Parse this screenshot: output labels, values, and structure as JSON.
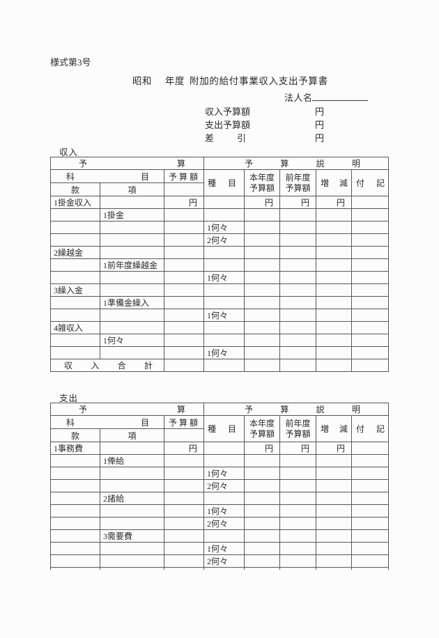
{
  "document": {
    "form_number": "様式第3号",
    "title": {
      "era": "昭和",
      "year_suffix": "年度",
      "main": "附加的給付事業収入支出予算書"
    },
    "corporate_name_label": "法人名",
    "summary_rows": [
      {
        "label": "収入予算額",
        "unit": "円"
      },
      {
        "label": "支出予算額",
        "unit": "円"
      },
      {
        "label": "差 引",
        "unit": "円"
      }
    ]
  },
  "table_header": {
    "budget_group": "予 算",
    "explanation_group": "予 算 説 明",
    "subject": "科 目",
    "budget_amount": "予 算 額",
    "division": "款",
    "item": "項",
    "category": "種 目",
    "current_year_lines": [
      "本年度",
      "予算額"
    ],
    "previous_year_lines": [
      "前年度",
      "予算額"
    ],
    "change": "増 減",
    "note": "付 記"
  },
  "income": {
    "section_label": "収入",
    "rows": [
      [
        "1掛金収入",
        "",
        "円",
        "",
        "円",
        "円",
        "円",
        ""
      ],
      [
        "",
        "1掛金",
        "",
        "",
        "",
        "",
        "",
        ""
      ],
      [
        "",
        "",
        "",
        "1何々",
        "",
        "",
        "",
        ""
      ],
      [
        "",
        "",
        "",
        "2何々",
        "",
        "",
        "",
        ""
      ],
      [
        "2繰越金",
        "",
        "",
        "",
        "",
        "",
        "",
        ""
      ],
      [
        "",
        "1前年度繰越金",
        "",
        "",
        "",
        "",
        "",
        ""
      ],
      [
        "",
        "",
        "",
        "1何々",
        "",
        "",
        "",
        ""
      ],
      [
        "3繰入金",
        "",
        "",
        "",
        "",
        "",
        "",
        ""
      ],
      [
        "",
        "1準備金繰入",
        "",
        "",
        "",
        "",
        "",
        ""
      ],
      [
        "",
        "",
        "",
        "1何々",
        "",
        "",
        "",
        ""
      ],
      [
        "4雑収入",
        "",
        "",
        "",
        "",
        "",
        "",
        ""
      ],
      [
        "",
        "1何々",
        "",
        "",
        "",
        "",
        "",
        ""
      ],
      [
        "",
        "",
        "",
        "1何々",
        "",
        "",
        "",
        ""
      ]
    ],
    "total_label": "収 入 合 計"
  },
  "expenditure": {
    "section_label": "支出",
    "rows": [
      [
        "1事務費",
        "",
        "円",
        "",
        "円",
        "円",
        "円",
        ""
      ],
      [
        "",
        "1俸給",
        "",
        "",
        "",
        "",
        "",
        ""
      ],
      [
        "",
        "",
        "",
        "1何々",
        "",
        "",
        "",
        ""
      ],
      [
        "",
        "",
        "",
        "2何々",
        "",
        "",
        "",
        ""
      ],
      [
        "",
        "2諸給",
        "",
        "",
        "",
        "",
        "",
        ""
      ],
      [
        "",
        "",
        "",
        "1何々",
        "",
        "",
        "",
        ""
      ],
      [
        "",
        "",
        "",
        "2何々",
        "",
        "",
        "",
        ""
      ],
      [
        "",
        "3需要費",
        "",
        "",
        "",
        "",
        "",
        ""
      ],
      [
        "",
        "",
        "",
        "1何々",
        "",
        "",
        "",
        ""
      ],
      [
        "",
        "",
        "",
        "2何々",
        "",
        "",
        "",
        ""
      ]
    ],
    "truncated": true
  },
  "colors": {
    "text": "#2a2a2a",
    "border": "#565656",
    "background": "#fcfcfc"
  }
}
